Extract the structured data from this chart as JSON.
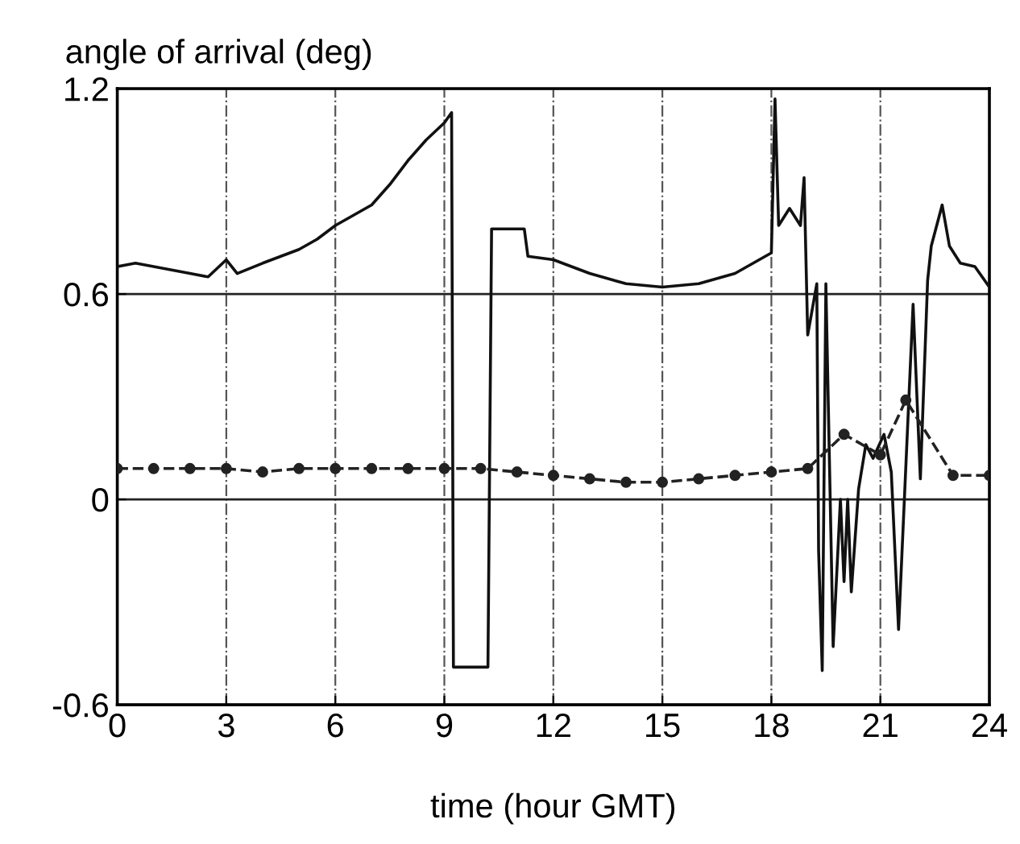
{
  "chart_data": {
    "type": "line",
    "xlabel": "time (hour GMT)",
    "ylabel": "angle of arrival (deg)",
    "xlim": [
      0,
      24
    ],
    "xticks": [
      0,
      3,
      6,
      9,
      12,
      15,
      18,
      21,
      24
    ],
    "ylim": [
      -0.6,
      1.2
    ],
    "yticks": [
      -0.6,
      0,
      0.6,
      1.2
    ],
    "grid": true,
    "series": [
      {
        "color": "#111111",
        "line_style": "solid",
        "marker": "none",
        "x": [
          0,
          0.5,
          1,
          1.5,
          2,
          2.5,
          3,
          3.3,
          4,
          4.5,
          5,
          5.5,
          6,
          6.5,
          7,
          7.5,
          8,
          8.5,
          9,
          9.2,
          9.25,
          10.2,
          10.3,
          11.2,
          11.3,
          12,
          13,
          14,
          15,
          16,
          17,
          17.5,
          18,
          18.1,
          18.2,
          18.5,
          18.8,
          18.9,
          19.0,
          19.25,
          19.3,
          19.4,
          19.5,
          19.7,
          19.9,
          20.0,
          20.1,
          20.2,
          20.4,
          20.6,
          20.8,
          21.1,
          21.3,
          21.5,
          21.9,
          22.1,
          22.3,
          22.4,
          22.7,
          22.9,
          23.2,
          23.6,
          24
        ],
        "values": [
          0.68,
          0.69,
          0.68,
          0.67,
          0.66,
          0.65,
          0.7,
          0.66,
          0.69,
          0.71,
          0.73,
          0.76,
          0.8,
          0.83,
          0.86,
          0.92,
          0.99,
          1.05,
          1.1,
          1.13,
          -0.49,
          -0.49,
          0.79,
          0.79,
          0.71,
          0.7,
          0.66,
          0.63,
          0.62,
          0.63,
          0.66,
          0.69,
          0.72,
          1.17,
          0.8,
          0.85,
          0.8,
          0.94,
          0.48,
          0.63,
          -0.15,
          -0.5,
          0.63,
          -0.43,
          0.0,
          -0.24,
          0.0,
          -0.27,
          0.03,
          0.16,
          0.12,
          0.19,
          0.08,
          -0.38,
          0.57,
          0.06,
          0.64,
          0.74,
          0.86,
          0.74,
          0.69,
          0.68,
          0.62
        ]
      },
      {
        "color": "#222222",
        "line_style": "dashed",
        "marker": "circle",
        "x": [
          0,
          1,
          2,
          3,
          4,
          5,
          6,
          7,
          8,
          9,
          10,
          11,
          12,
          13,
          14,
          15,
          16,
          17,
          18,
          19,
          20,
          21,
          21.7,
          23,
          24
        ],
        "values": [
          0.09,
          0.09,
          0.09,
          0.09,
          0.08,
          0.09,
          0.09,
          0.09,
          0.09,
          0.09,
          0.09,
          0.08,
          0.07,
          0.06,
          0.05,
          0.05,
          0.06,
          0.07,
          0.08,
          0.09,
          0.19,
          0.13,
          0.29,
          0.07,
          0.07
        ]
      }
    ]
  }
}
